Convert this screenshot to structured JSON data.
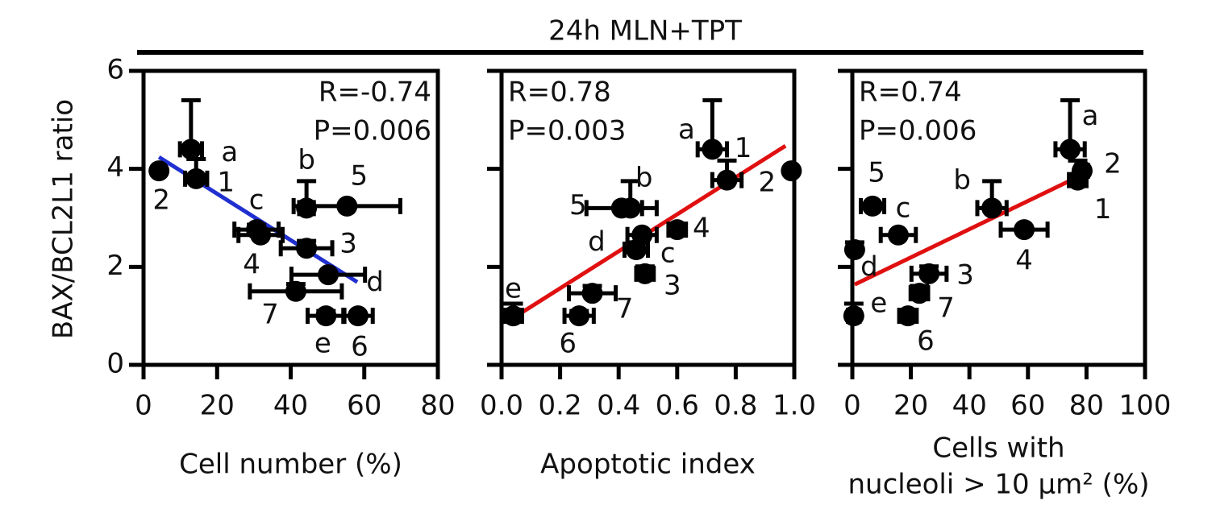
{
  "title": "24h MLN+TPT",
  "ylabel": "BAX/BCL2L1 ratio",
  "chart_data": [
    {
      "type": "scatter",
      "xlabel": [
        "Cell number (%)"
      ],
      "annotations": [
        "R=-0.74",
        "P=0.006"
      ],
      "xlim": [
        0,
        80
      ],
      "xticks": [
        0,
        20,
        40,
        60,
        80
      ],
      "ylim": [
        0,
        6
      ],
      "yticks": [
        0,
        2,
        4,
        6
      ],
      "show_ytick_labels": true,
      "color": "#000000",
      "labels": [
        "a",
        "1",
        "2",
        "c",
        "4",
        "b",
        "5",
        "3",
        "d",
        "7",
        "e",
        "6"
      ],
      "x": [
        12.9,
        14.3,
        4.2,
        30.7,
        31.8,
        44.3,
        55.3,
        44.3,
        50.2,
        41.4,
        49.6,
        58.3
      ],
      "values": [
        4.4,
        3.8,
        3.96,
        2.76,
        2.65,
        3.2,
        3.24,
        2.38,
        1.84,
        1.5,
        1.0,
        1.0
      ],
      "xerr": [
        3,
        3,
        0,
        6,
        6,
        2,
        14.5,
        7,
        10,
        12.5,
        5,
        4
      ],
      "yerr": [
        1.0,
        0.4,
        0,
        0.1,
        0,
        0.55,
        0,
        0.15,
        0,
        0.15,
        0.1,
        0
      ],
      "fit": {
        "color": "#1f2fd0",
        "x": [
          4.2,
          58.1
        ],
        "y": [
          4.24,
          1.69
        ]
      }
    },
    {
      "type": "scatter",
      "xlabel": [
        "Apoptotic index"
      ],
      "annotations": [
        "R=0.78",
        "P=0.003"
      ],
      "xlim": [
        0,
        1
      ],
      "xticks": [
        {
          "value": 0,
          "label": "0.0"
        },
        0.2,
        0.4,
        0.6,
        0.8,
        {
          "value": 1,
          "label": "1.0"
        }
      ],
      "ylim": [
        0,
        6
      ],
      "yticks": [
        0,
        2,
        4,
        6
      ],
      "show_ytick_labels": false,
      "color": "#000000",
      "labels": [
        "a",
        "1",
        "2",
        "c",
        "4",
        "b",
        "5",
        "3",
        "d",
        "7",
        "e",
        "6"
      ],
      "x": [
        0.72,
        0.77,
        0.99,
        0.48,
        0.6,
        0.44,
        0.41,
        0.49,
        0.46,
        0.31,
        0.04,
        0.265
      ],
      "values": [
        4.4,
        3.77,
        3.96,
        2.65,
        2.76,
        3.2,
        3.2,
        1.86,
        2.35,
        1.46,
        1.0,
        1.0
      ],
      "xerr": [
        0.05,
        0.05,
        0,
        0.05,
        0.03,
        0.04,
        0.12,
        0.03,
        0.04,
        0.08,
        0.03,
        0.05
      ],
      "yerr": [
        1.0,
        0.4,
        0,
        0,
        0,
        0.55,
        0,
        0.15,
        0.15,
        0.15,
        0.25,
        0.1
      ],
      "fit": {
        "color": "#e01010",
        "x": [
          0.03,
          0.97
        ],
        "y": [
          0.92,
          4.47
        ]
      }
    },
    {
      "type": "scatter",
      "xlabel": [
        "Cells with",
        "nucleoli > 10 μm² (%)"
      ],
      "annotations": [
        "R=0.74",
        "P=0.006"
      ],
      "xlim": [
        0,
        100
      ],
      "xticks": [
        0,
        20,
        40,
        60,
        80,
        100
      ],
      "ylim": [
        0,
        6
      ],
      "yticks": [
        0,
        2,
        4,
        6
      ],
      "show_ytick_labels": false,
      "color": "#000000",
      "labels": [
        "a",
        "1",
        "2",
        "c",
        "4",
        "b",
        "5",
        "3",
        "d",
        "7",
        "e",
        "6"
      ],
      "x": [
        74.4,
        77,
        78.5,
        15.7,
        58.7,
        47.7,
        6.9,
        26.2,
        0.8,
        22.9,
        0.5,
        19
      ],
      "values": [
        4.4,
        3.77,
        3.96,
        2.65,
        2.76,
        3.2,
        3.24,
        1.86,
        2.35,
        1.46,
        1.0,
        1.0
      ],
      "xerr": [
        5,
        3,
        2,
        6,
        8,
        5,
        4,
        6,
        0,
        3,
        2,
        3
      ],
      "yerr": [
        1.0,
        0.4,
        0,
        0,
        0,
        0.55,
        0,
        0.15,
        0.15,
        0.15,
        0.25,
        0
      ],
      "fit": {
        "color": "#e01010",
        "x": [
          0.8,
          77.9
        ],
        "y": [
          1.64,
          3.86
        ]
      }
    }
  ]
}
